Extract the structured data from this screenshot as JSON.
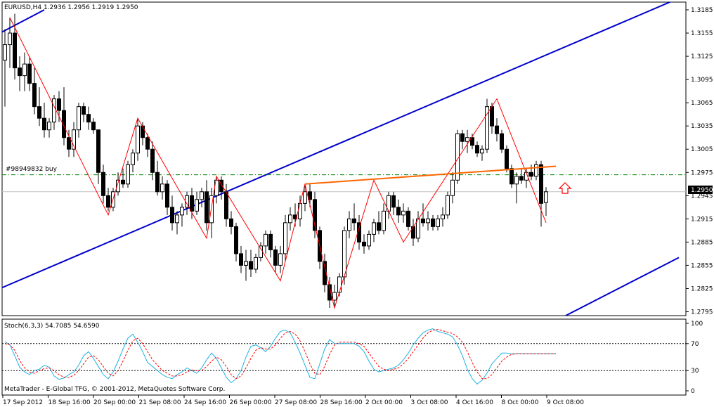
{
  "window": {
    "symbol_header": "EURUSD,H4  1.2936 1.2956 1.2919 1.2950",
    "footer": "MetaTrader - E-Global TFG, © 2001-2012, MetaQuotes Software Corp."
  },
  "colors": {
    "background": "#ffffff",
    "bull_candle": "#ffffff",
    "bear_candle": "#000000",
    "zigzag": "#ff0000",
    "channel": "#0000cc",
    "neckline": "#ff6600",
    "level_line": "#008000",
    "stoch_main": "#20b2e0",
    "stoch_signal": "#ff0000",
    "arrow": "#ff0000"
  },
  "price_pane": {
    "y_ticks": [
      "1.3185",
      "1.3155",
      "1.3125",
      "1.3095",
      "1.3065",
      "1.3035",
      "1.3005",
      "1.2975",
      "1.2945",
      "1.2915",
      "1.2885",
      "1.2855",
      "1.2825",
      "1.2795"
    ],
    "current_price": "1.2950",
    "order_label": "#98949832 buy",
    "order_price": 1.2972
  },
  "stoch_pane": {
    "label": "Stoch(6,3,3) 54.7085 54.6590",
    "y_ticks": [
      "100",
      "70",
      "30",
      "0"
    ],
    "levels": [
      70,
      30
    ]
  },
  "x_axis": {
    "labels": [
      "17 Sep 2012",
      "18 Sep 16:00",
      "20 Sep 00:00",
      "21 Sep 08:00",
      "24 Sep 16:00",
      "26 Sep 00:00",
      "27 Sep 08:00",
      "28 Sep 16:00",
      "2 Oct 00:00",
      "3 Oct 08:00",
      "4 Oct 16:00",
      "8 Oct 00:00",
      "9 Oct 08:00"
    ]
  },
  "chart_data": {
    "type": "candlestick",
    "symbol": "EURUSD",
    "timeframe": "H4",
    "ylim": [
      1.279,
      1.3195
    ],
    "candles": [
      {
        "o": 1.312,
        "h": 1.316,
        "l": 1.306,
        "c": 1.314
      },
      {
        "o": 1.314,
        "h": 1.3175,
        "l": 1.311,
        "c": 1.3155
      },
      {
        "o": 1.3155,
        "h": 1.318,
        "l": 1.3095,
        "c": 1.311
      },
      {
        "o": 1.311,
        "h": 1.3125,
        "l": 1.308,
        "c": 1.31
      },
      {
        "o": 1.31,
        "h": 1.313,
        "l": 1.308,
        "c": 1.3115
      },
      {
        "o": 1.3115,
        "h": 1.3125,
        "l": 1.308,
        "c": 1.309
      },
      {
        "o": 1.309,
        "h": 1.311,
        "l": 1.305,
        "c": 1.306
      },
      {
        "o": 1.306,
        "h": 1.3085,
        "l": 1.3035,
        "c": 1.3045
      },
      {
        "o": 1.3045,
        "h": 1.3065,
        "l": 1.302,
        "c": 1.303
      },
      {
        "o": 1.303,
        "h": 1.3045,
        "l": 1.302,
        "c": 1.304
      },
      {
        "o": 1.304,
        "h": 1.3075,
        "l": 1.303,
        "c": 1.307
      },
      {
        "o": 1.307,
        "h": 1.308,
        "l": 1.304,
        "c": 1.3055
      },
      {
        "o": 1.3055,
        "h": 1.3085,
        "l": 1.301,
        "c": 1.302
      },
      {
        "o": 1.302,
        "h": 1.303,
        "l": 1.2995,
        "c": 1.3005
      },
      {
        "o": 1.3005,
        "h": 1.304,
        "l": 1.2995,
        "c": 1.303
      },
      {
        "o": 1.303,
        "h": 1.3065,
        "l": 1.302,
        "c": 1.306
      },
      {
        "o": 1.306,
        "h": 1.3065,
        "l": 1.304,
        "c": 1.305
      },
      {
        "o": 1.305,
        "h": 1.306,
        "l": 1.303,
        "c": 1.304
      },
      {
        "o": 1.304,
        "h": 1.3045,
        "l": 1.3025,
        "c": 1.303
      },
      {
        "o": 1.303,
        "h": 1.303,
        "l": 1.296,
        "c": 1.2975
      },
      {
        "o": 1.2975,
        "h": 1.2985,
        "l": 1.2935,
        "c": 1.2945
      },
      {
        "o": 1.2945,
        "h": 1.2955,
        "l": 1.2925,
        "c": 1.293
      },
      {
        "o": 1.293,
        "h": 1.2955,
        "l": 1.2925,
        "c": 1.295
      },
      {
        "o": 1.295,
        "h": 1.2975,
        "l": 1.2945,
        "c": 1.2965
      },
      {
        "o": 1.2965,
        "h": 1.298,
        "l": 1.2955,
        "c": 1.296
      },
      {
        "o": 1.296,
        "h": 1.299,
        "l": 1.2955,
        "c": 1.2985
      },
      {
        "o": 1.2985,
        "h": 1.3005,
        "l": 1.2975,
        "c": 1.3
      },
      {
        "o": 1.3,
        "h": 1.3045,
        "l": 1.299,
        "c": 1.3035
      },
      {
        "o": 1.3035,
        "h": 1.304,
        "l": 1.301,
        "c": 1.302
      },
      {
        "o": 1.302,
        "h": 1.3025,
        "l": 1.2995,
        "c": 1.3005
      },
      {
        "o": 1.3005,
        "h": 1.3015,
        "l": 1.2965,
        "c": 1.2975
      },
      {
        "o": 1.2975,
        "h": 1.299,
        "l": 1.2945,
        "c": 1.295
      },
      {
        "o": 1.295,
        "h": 1.297,
        "l": 1.294,
        "c": 1.296
      },
      {
        "o": 1.296,
        "h": 1.2965,
        "l": 1.292,
        "c": 1.293
      },
      {
        "o": 1.293,
        "h": 1.2945,
        "l": 1.29,
        "c": 1.291
      },
      {
        "o": 1.291,
        "h": 1.2925,
        "l": 1.2895,
        "c": 1.292
      },
      {
        "o": 1.292,
        "h": 1.2935,
        "l": 1.2905,
        "c": 1.293
      },
      {
        "o": 1.293,
        "h": 1.295,
        "l": 1.292,
        "c": 1.2945
      },
      {
        "o": 1.2945,
        "h": 1.2955,
        "l": 1.2915,
        "c": 1.2925
      },
      {
        "o": 1.2925,
        "h": 1.295,
        "l": 1.292,
        "c": 1.294
      },
      {
        "o": 1.294,
        "h": 1.2955,
        "l": 1.293,
        "c": 1.295
      },
      {
        "o": 1.295,
        "h": 1.2965,
        "l": 1.29,
        "c": 1.291
      },
      {
        "o": 1.291,
        "h": 1.2955,
        "l": 1.289,
        "c": 1.2945
      },
      {
        "o": 1.2945,
        "h": 1.297,
        "l": 1.2935,
        "c": 1.2965
      },
      {
        "o": 1.2965,
        "h": 1.297,
        "l": 1.294,
        "c": 1.295
      },
      {
        "o": 1.295,
        "h": 1.296,
        "l": 1.2905,
        "c": 1.2915
      },
      {
        "o": 1.2915,
        "h": 1.2925,
        "l": 1.2895,
        "c": 1.2905
      },
      {
        "o": 1.2905,
        "h": 1.291,
        "l": 1.286,
        "c": 1.287
      },
      {
        "o": 1.287,
        "h": 1.288,
        "l": 1.2845,
        "c": 1.2855
      },
      {
        "o": 1.2855,
        "h": 1.2875,
        "l": 1.2835,
        "c": 1.286
      },
      {
        "o": 1.286,
        "h": 1.2875,
        "l": 1.284,
        "c": 1.285
      },
      {
        "o": 1.285,
        "h": 1.287,
        "l": 1.2845,
        "c": 1.2865
      },
      {
        "o": 1.2865,
        "h": 1.2885,
        "l": 1.286,
        "c": 1.288
      },
      {
        "o": 1.288,
        "h": 1.29,
        "l": 1.287,
        "c": 1.2895
      },
      {
        "o": 1.2895,
        "h": 1.29,
        "l": 1.2865,
        "c": 1.2875
      },
      {
        "o": 1.2875,
        "h": 1.288,
        "l": 1.2845,
        "c": 1.2855
      },
      {
        "o": 1.2855,
        "h": 1.288,
        "l": 1.2845,
        "c": 1.287
      },
      {
        "o": 1.287,
        "h": 1.292,
        "l": 1.286,
        "c": 1.291
      },
      {
        "o": 1.291,
        "h": 1.293,
        "l": 1.29,
        "c": 1.292
      },
      {
        "o": 1.292,
        "h": 1.2935,
        "l": 1.2905,
        "c": 1.2915
      },
      {
        "o": 1.2915,
        "h": 1.2945,
        "l": 1.2905,
        "c": 1.2935
      },
      {
        "o": 1.2935,
        "h": 1.296,
        "l": 1.2925,
        "c": 1.295
      },
      {
        "o": 1.295,
        "h": 1.296,
        "l": 1.293,
        "c": 1.294
      },
      {
        "o": 1.294,
        "h": 1.295,
        "l": 1.289,
        "c": 1.29
      },
      {
        "o": 1.29,
        "h": 1.2905,
        "l": 1.285,
        "c": 1.286
      },
      {
        "o": 1.286,
        "h": 1.287,
        "l": 1.282,
        "c": 1.283
      },
      {
        "o": 1.283,
        "h": 1.284,
        "l": 1.28,
        "c": 1.281
      },
      {
        "o": 1.281,
        "h": 1.283,
        "l": 1.28,
        "c": 1.282
      },
      {
        "o": 1.282,
        "h": 1.2845,
        "l": 1.2815,
        "c": 1.284
      },
      {
        "o": 1.284,
        "h": 1.2905,
        "l": 1.283,
        "c": 1.29
      },
      {
        "o": 1.29,
        "h": 1.2925,
        "l": 1.289,
        "c": 1.2915
      },
      {
        "o": 1.2915,
        "h": 1.2935,
        "l": 1.29,
        "c": 1.291
      },
      {
        "o": 1.291,
        "h": 1.292,
        "l": 1.2875,
        "c": 1.2885
      },
      {
        "o": 1.2885,
        "h": 1.2895,
        "l": 1.287,
        "c": 1.288
      },
      {
        "o": 1.288,
        "h": 1.29,
        "l": 1.2875,
        "c": 1.2895
      },
      {
        "o": 1.2895,
        "h": 1.2915,
        "l": 1.2885,
        "c": 1.291
      },
      {
        "o": 1.291,
        "h": 1.2925,
        "l": 1.2895,
        "c": 1.29
      },
      {
        "o": 1.29,
        "h": 1.2935,
        "l": 1.2895,
        "c": 1.2925
      },
      {
        "o": 1.2925,
        "h": 1.295,
        "l": 1.2915,
        "c": 1.2945
      },
      {
        "o": 1.2945,
        "h": 1.295,
        "l": 1.292,
        "c": 1.293
      },
      {
        "o": 1.293,
        "h": 1.294,
        "l": 1.291,
        "c": 1.292
      },
      {
        "o": 1.292,
        "h": 1.2935,
        "l": 1.291,
        "c": 1.2925
      },
      {
        "o": 1.2925,
        "h": 1.293,
        "l": 1.29,
        "c": 1.2905
      },
      {
        "o": 1.2905,
        "h": 1.2915,
        "l": 1.288,
        "c": 1.289
      },
      {
        "o": 1.289,
        "h": 1.2925,
        "l": 1.2885,
        "c": 1.2915
      },
      {
        "o": 1.2915,
        "h": 1.2935,
        "l": 1.2905,
        "c": 1.291
      },
      {
        "o": 1.291,
        "h": 1.2925,
        "l": 1.29,
        "c": 1.2915
      },
      {
        "o": 1.2915,
        "h": 1.292,
        "l": 1.29,
        "c": 1.2905
      },
      {
        "o": 1.2905,
        "h": 1.292,
        "l": 1.29,
        "c": 1.2915
      },
      {
        "o": 1.2915,
        "h": 1.293,
        "l": 1.2905,
        "c": 1.292
      },
      {
        "o": 1.292,
        "h": 1.295,
        "l": 1.2915,
        "c": 1.2945
      },
      {
        "o": 1.2945,
        "h": 1.2975,
        "l": 1.2935,
        "c": 1.2965
      },
      {
        "o": 1.2965,
        "h": 1.303,
        "l": 1.296,
        "c": 1.3025
      },
      {
        "o": 1.3025,
        "h": 1.303,
        "l": 1.3005,
        "c": 1.3015
      },
      {
        "o": 1.3015,
        "h": 1.303,
        "l": 1.3,
        "c": 1.302
      },
      {
        "o": 1.302,
        "h": 1.3025,
        "l": 1.3005,
        "c": 1.301
      },
      {
        "o": 1.301,
        "h": 1.3015,
        "l": 1.2995,
        "c": 1.3
      },
      {
        "o": 1.3,
        "h": 1.301,
        "l": 1.299,
        "c": 1.3005
      },
      {
        "o": 1.3005,
        "h": 1.307,
        "l": 1.3,
        "c": 1.306
      },
      {
        "o": 1.306,
        "h": 1.3065,
        "l": 1.3025,
        "c": 1.3035
      },
      {
        "o": 1.3035,
        "h": 1.3045,
        "l": 1.3015,
        "c": 1.3025
      },
      {
        "o": 1.3025,
        "h": 1.303,
        "l": 1.3,
        "c": 1.3005
      },
      {
        "o": 1.3005,
        "h": 1.301,
        "l": 1.2975,
        "c": 1.298
      },
      {
        "o": 1.298,
        "h": 1.2985,
        "l": 1.2955,
        "c": 1.296
      },
      {
        "o": 1.296,
        "h": 1.2975,
        "l": 1.2935,
        "c": 1.297
      },
      {
        "o": 1.297,
        "h": 1.298,
        "l": 1.296,
        "c": 1.2965
      },
      {
        "o": 1.2965,
        "h": 1.298,
        "l": 1.2955,
        "c": 1.2975
      },
      {
        "o": 1.2975,
        "h": 1.2985,
        "l": 1.2965,
        "c": 1.297
      },
      {
        "o": 1.297,
        "h": 1.299,
        "l": 1.2965,
        "c": 1.2985
      },
      {
        "o": 1.2985,
        "h": 1.299,
        "l": 1.2905,
        "c": 1.2935
      },
      {
        "o": 1.2936,
        "h": 1.2956,
        "l": 1.2919,
        "c": 1.295
      }
    ],
    "zigzag": [
      {
        "i": 1,
        "p": 1.3175
      },
      {
        "i": 21,
        "p": 1.292
      },
      {
        "i": 27,
        "p": 1.3045
      },
      {
        "i": 41,
        "p": 1.289
      },
      {
        "i": 43,
        "p": 1.297
      },
      {
        "i": 56,
        "p": 1.2835
      },
      {
        "i": 61,
        "p": 1.296
      },
      {
        "i": 67,
        "p": 1.28
      },
      {
        "i": 75,
        "p": 1.2965
      },
      {
        "i": 81,
        "p": 1.2885
      },
      {
        "i": 100,
        "p": 1.307
      },
      {
        "i": 110,
        "p": 1.291
      }
    ],
    "neckline": [
      {
        "i": 61,
        "p": 1.296
      },
      {
        "i": 112,
        "p": 1.2983
      }
    ],
    "channel_upper": [
      {
        "i": -1,
        "p": 1.2825
      },
      {
        "i": 137,
        "p": 1.32
      }
    ],
    "channel_upper_top": [
      {
        "i": -1,
        "p": 1.3155
      },
      {
        "i": 8,
        "p": 1.3185
      }
    ],
    "channel_lower": [
      {
        "i": 114,
        "p": 1.279
      },
      {
        "i": 137,
        "p": 1.2865
      }
    ],
    "stoch_main": [
      73,
      68,
      52,
      35,
      28,
      24,
      30,
      32,
      38,
      35,
      22,
      17,
      19,
      24,
      28,
      38,
      52,
      58,
      48,
      36,
      24,
      18,
      28,
      44,
      62,
      78,
      84,
      72,
      58,
      42,
      36,
      30,
      24,
      20,
      18,
      24,
      28,
      34,
      30,
      26,
      34,
      46,
      56,
      48,
      34,
      20,
      12,
      18,
      30,
      50,
      66,
      68,
      64,
      58,
      66,
      78,
      88,
      90,
      86,
      72,
      56,
      38,
      20,
      18,
      40,
      62,
      76,
      70,
      70,
      70,
      70,
      70,
      66,
      58,
      44,
      32,
      28,
      30,
      32,
      34,
      38,
      46,
      56,
      68,
      78,
      86,
      90,
      92,
      88,
      86,
      84,
      80,
      68,
      52,
      32,
      18,
      10,
      16,
      26,
      40,
      48,
      56,
      56,
      55,
      55,
      55,
      55,
      55,
      55,
      55,
      55,
      55,
      55
    ],
    "stoch_signal": [
      70,
      68,
      60,
      45,
      34,
      28,
      26,
      30,
      33,
      34,
      30,
      24,
      20,
      20,
      23,
      30,
      40,
      50,
      52,
      46,
      36,
      26,
      22,
      30,
      44,
      60,
      74,
      78,
      70,
      58,
      46,
      38,
      30,
      26,
      22,
      22,
      24,
      28,
      31,
      30,
      30,
      36,
      44,
      50,
      46,
      36,
      24,
      18,
      22,
      34,
      48,
      60,
      64,
      62,
      62,
      68,
      78,
      86,
      88,
      84,
      74,
      58,
      40,
      26,
      24,
      36,
      54,
      68,
      72,
      72,
      72,
      72,
      70,
      66,
      56,
      46,
      36,
      32,
      30,
      32,
      34,
      40,
      48,
      58,
      68,
      78,
      86,
      90,
      91,
      89,
      87,
      85,
      80,
      72,
      58,
      42,
      28,
      18,
      18,
      24,
      34,
      44,
      50,
      54,
      55,
      55,
      55,
      55,
      55,
      55,
      55,
      55,
      55
    ]
  }
}
